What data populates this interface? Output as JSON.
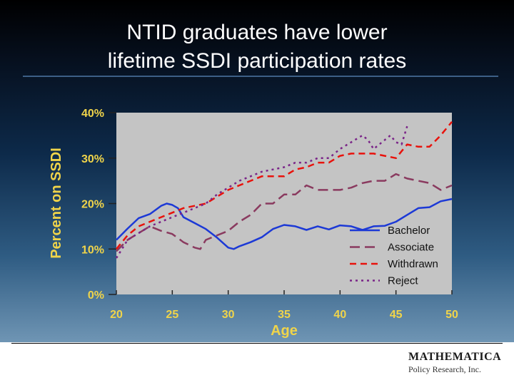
{
  "slide": {
    "title_line1": "NTID graduates have lower",
    "title_line2": "lifetime SSDI participation rates",
    "logo_name": "MATHEMATICA",
    "logo_sub": "Policy Research, Inc."
  },
  "colors": {
    "bachelor": "#1c39d6",
    "associate": "#8a3a5f",
    "withdrawn": "#e8120c",
    "reject": "#7a2488",
    "plot_bg": "#c4c4c4",
    "axis_text": "#f0d44a"
  },
  "chart_data": {
    "type": "line",
    "xlabel": "Age",
    "ylabel": "Percent on SSDI",
    "xlim": [
      20,
      50
    ],
    "ylim": [
      0,
      40
    ],
    "x_ticks": [
      "20",
      "25",
      "30",
      "35",
      "40",
      "45",
      "50"
    ],
    "y_ticks": [
      "0%",
      "10%",
      "20%",
      "30%",
      "40%"
    ],
    "legend_position": "bottom-right",
    "series": [
      {
        "name": "Bachelor",
        "style": "solid",
        "points": [
          [
            20,
            12
          ],
          [
            21,
            14.5
          ],
          [
            22,
            16.8
          ],
          [
            23,
            17.7
          ],
          [
            24,
            19.5
          ],
          [
            24.5,
            20
          ],
          [
            25,
            19.7
          ],
          [
            25.5,
            19
          ],
          [
            26,
            17
          ],
          [
            27,
            15.7
          ],
          [
            28,
            14.4
          ],
          [
            29,
            12.5
          ],
          [
            30,
            10.3
          ],
          [
            30.5,
            10
          ],
          [
            31,
            10.6
          ],
          [
            32,
            11.5
          ],
          [
            33,
            12.6
          ],
          [
            34,
            14.4
          ],
          [
            35,
            15.3
          ],
          [
            36,
            15
          ],
          [
            37,
            14.2
          ],
          [
            38,
            15
          ],
          [
            39,
            14.3
          ],
          [
            40,
            15.2
          ],
          [
            41,
            15
          ],
          [
            42,
            14.2
          ],
          [
            43,
            15
          ],
          [
            44,
            15.1
          ],
          [
            45,
            16
          ],
          [
            46,
            17.5
          ],
          [
            47,
            19
          ],
          [
            48,
            19.2
          ],
          [
            49,
            20.5
          ],
          [
            50,
            21
          ]
        ]
      },
      {
        "name": "Associate",
        "style": "dash",
        "points": [
          [
            20,
            9.5
          ],
          [
            21,
            12
          ],
          [
            22,
            13.5
          ],
          [
            23,
            15
          ],
          [
            24,
            14
          ],
          [
            25,
            13.3
          ],
          [
            26,
            11.5
          ],
          [
            27,
            10.3
          ],
          [
            27.5,
            10
          ],
          [
            28,
            12
          ],
          [
            29,
            13
          ],
          [
            30,
            14
          ],
          [
            31,
            16
          ],
          [
            32,
            17.5
          ],
          [
            33,
            20
          ],
          [
            34,
            20
          ],
          [
            35,
            22
          ],
          [
            36,
            22
          ],
          [
            37,
            24
          ],
          [
            38,
            23
          ],
          [
            40,
            23
          ],
          [
            41,
            23.5
          ],
          [
            42,
            24.5
          ],
          [
            43,
            25
          ],
          [
            44,
            25
          ],
          [
            45,
            26.5
          ],
          [
            46,
            25.5
          ],
          [
            47,
            25
          ],
          [
            48,
            24.5
          ],
          [
            49,
            23
          ],
          [
            50,
            24
          ]
        ]
      },
      {
        "name": "Withdrawn",
        "style": "longdash",
        "points": [
          [
            20,
            10
          ],
          [
            21,
            13
          ],
          [
            22,
            15
          ],
          [
            23,
            16
          ],
          [
            24,
            17
          ],
          [
            25,
            18
          ],
          [
            26,
            19
          ],
          [
            27,
            19.5
          ],
          [
            28,
            20
          ],
          [
            29,
            21.5
          ],
          [
            30,
            23
          ],
          [
            31,
            24
          ],
          [
            32,
            25
          ],
          [
            33,
            26
          ],
          [
            34,
            26
          ],
          [
            35,
            26
          ],
          [
            36,
            27.5
          ],
          [
            37,
            28
          ],
          [
            38,
            29
          ],
          [
            39,
            29
          ],
          [
            40,
            30.5
          ],
          [
            41,
            31
          ],
          [
            42,
            31
          ],
          [
            43,
            31
          ],
          [
            44,
            30.5
          ],
          [
            45,
            30
          ],
          [
            46,
            33
          ],
          [
            47,
            32.5
          ],
          [
            48,
            32.5
          ],
          [
            49,
            35
          ],
          [
            50,
            38
          ]
        ]
      },
      {
        "name": "Reject",
        "style": "dot",
        "points": [
          [
            20,
            8
          ],
          [
            21,
            12
          ],
          [
            22,
            13.5
          ],
          [
            23,
            15
          ],
          [
            24,
            16
          ],
          [
            25,
            17
          ],
          [
            26,
            18
          ],
          [
            27,
            19
          ],
          [
            28,
            20
          ],
          [
            29,
            22
          ],
          [
            30,
            23.5
          ],
          [
            31,
            25
          ],
          [
            32,
            26
          ],
          [
            33,
            27
          ],
          [
            34,
            27.5
          ],
          [
            35,
            28
          ],
          [
            36,
            29
          ],
          [
            37,
            29
          ],
          [
            38,
            30
          ],
          [
            39,
            30
          ],
          [
            40,
            32
          ],
          [
            41,
            33.5
          ],
          [
            42,
            35
          ],
          [
            42.5,
            34
          ],
          [
            43,
            32
          ],
          [
            44,
            34
          ],
          [
            44.5,
            35
          ],
          [
            45,
            33.5
          ],
          [
            45.5,
            33
          ],
          [
            46,
            37
          ]
        ]
      }
    ]
  }
}
